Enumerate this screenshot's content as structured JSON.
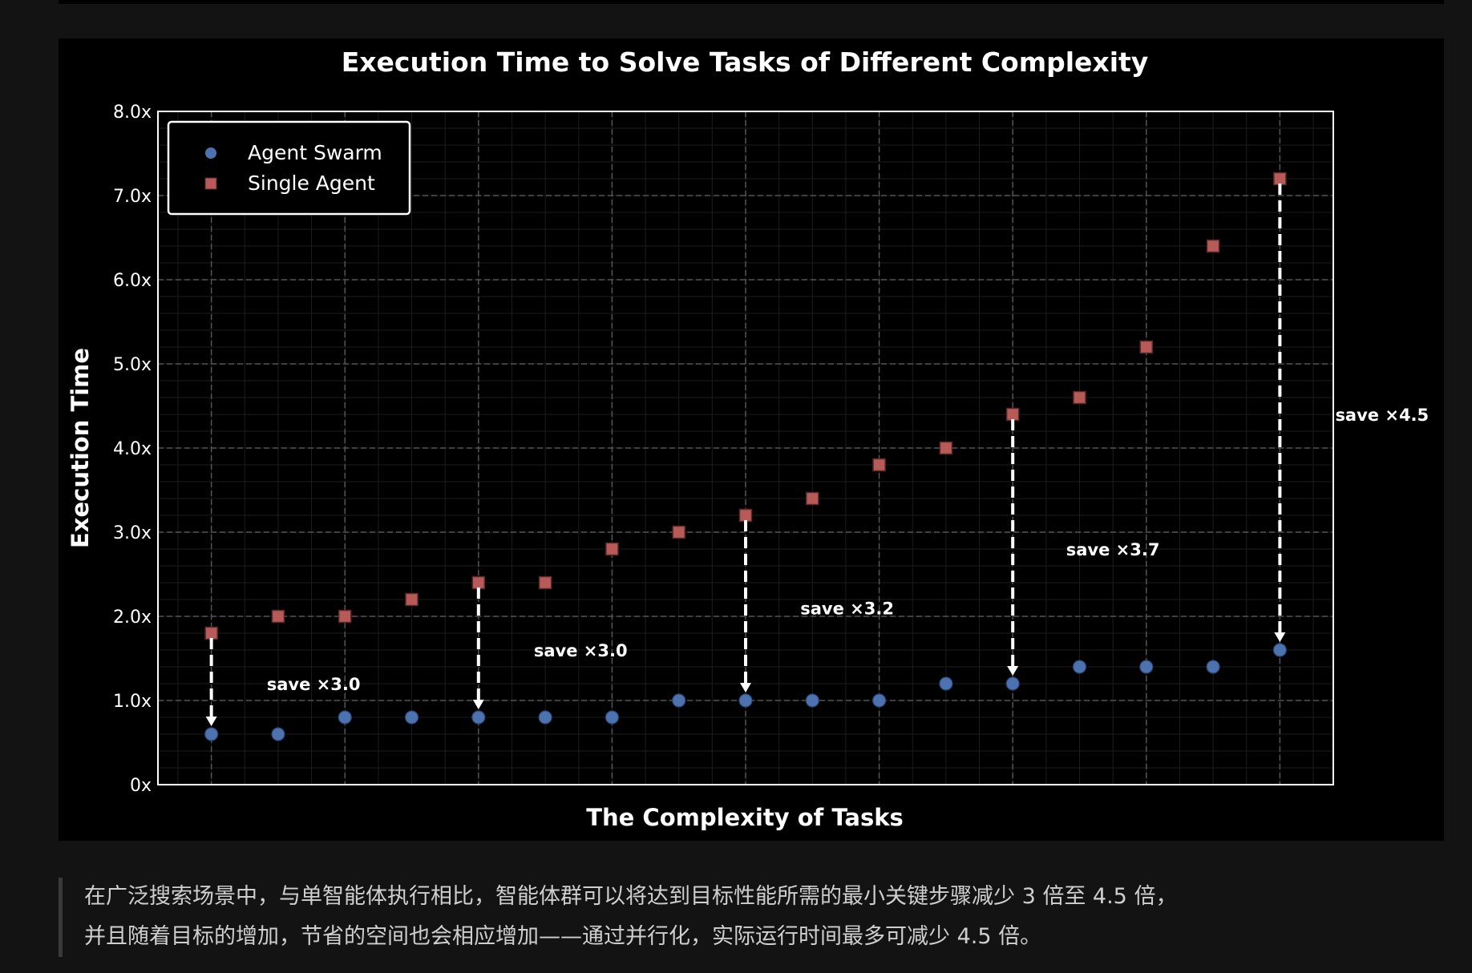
{
  "chart_data": {
    "type": "scatter",
    "title": "Execution Time to Solve Tasks of Different Complexity",
    "xlabel": "The Complexity of Tasks",
    "ylabel": "Execution Time",
    "xlim": [
      0.2,
      17.8
    ],
    "ylim": [
      0,
      8
    ],
    "yticks": [
      0,
      1,
      2,
      3,
      4,
      5,
      6,
      7,
      8
    ],
    "ytick_labels": [
      "0x",
      "1.0x",
      "2.0x",
      "3.0x",
      "4.0x",
      "5.0x",
      "6.0x",
      "7.0x",
      "8.0x"
    ],
    "x_grid_major": [
      1,
      3,
      5,
      7,
      9,
      11,
      13,
      15,
      17
    ],
    "grid": true,
    "legend_placement": "top-left",
    "x": [
      1,
      2,
      3,
      4,
      5,
      6,
      7,
      8,
      9,
      10,
      11,
      12,
      13,
      14,
      15,
      16,
      17
    ],
    "series": [
      {
        "name": "Agent Swarm",
        "marker": "circle",
        "color": "#4c72b0",
        "values": [
          0.6,
          0.6,
          0.8,
          0.8,
          0.8,
          0.8,
          0.8,
          1.0,
          1.0,
          1.0,
          1.0,
          1.2,
          1.2,
          1.4,
          1.4,
          1.4,
          1.6
        ]
      },
      {
        "name": "Single Agent",
        "marker": "square",
        "color": "#b85a58",
        "values": [
          1.8,
          2.0,
          2.0,
          2.2,
          2.4,
          2.4,
          2.8,
          3.0,
          3.2,
          3.4,
          3.8,
          4.0,
          4.4,
          4.6,
          5.2,
          6.4,
          7.2
        ]
      }
    ],
    "arrows": [
      {
        "x": 1,
        "from": 1.8,
        "to": 0.6
      },
      {
        "x": 5,
        "from": 2.4,
        "to": 0.8
      },
      {
        "x": 9,
        "from": 3.2,
        "to": 1.0
      },
      {
        "x": 13,
        "from": 4.4,
        "to": 1.2
      },
      {
        "x": 17,
        "from": 7.2,
        "to": 1.6
      }
    ],
    "annotations": [
      {
        "text": "save ×3.0",
        "x": 2.53,
        "y": 1.2
      },
      {
        "text": "save ×3.0",
        "x": 6.53,
        "y": 1.6
      },
      {
        "text": "save ×3.2",
        "x": 10.52,
        "y": 2.1
      },
      {
        "text": "save ×3.7",
        "x": 14.5,
        "y": 2.8
      },
      {
        "text": "save ×4.5",
        "x": 18.53,
        "y": 4.4
      }
    ]
  },
  "caption": {
    "line1": "在广泛搜索场景中，与单智能体执行相比，智能体群可以将达到目标性能所需的最小关键步骤减少 3 倍至 4.5 倍，",
    "line2": "并且随着目标的增加，节省的空间也会相应增加——通过并行化，实际运行时间最多可减少 4.5 倍。"
  }
}
